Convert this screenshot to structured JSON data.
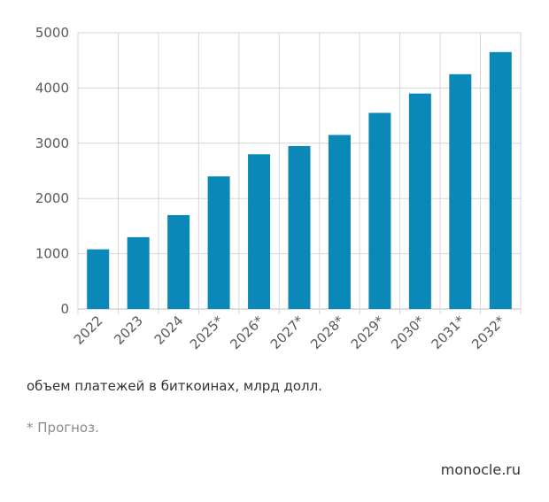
{
  "chart_data": {
    "type": "bar",
    "categories": [
      "2022",
      "2023",
      "2024",
      "2025*",
      "2026*",
      "2027*",
      "2028*",
      "2029*",
      "2030*",
      "2031*",
      "2032*"
    ],
    "values": [
      1080,
      1300,
      1700,
      2400,
      2800,
      2950,
      3150,
      3550,
      3900,
      4250,
      4650
    ],
    "ylim": [
      0,
      5000
    ],
    "yticks": [
      0,
      1000,
      2000,
      3000,
      4000,
      5000
    ],
    "grid": true,
    "bar_color": "#0a88b8",
    "grid_color": "#d6d6d6"
  },
  "caption": "объем платежей в биткоинах, млрд долл.",
  "footnote": "* Прогноз.",
  "source": "monocle.ru"
}
